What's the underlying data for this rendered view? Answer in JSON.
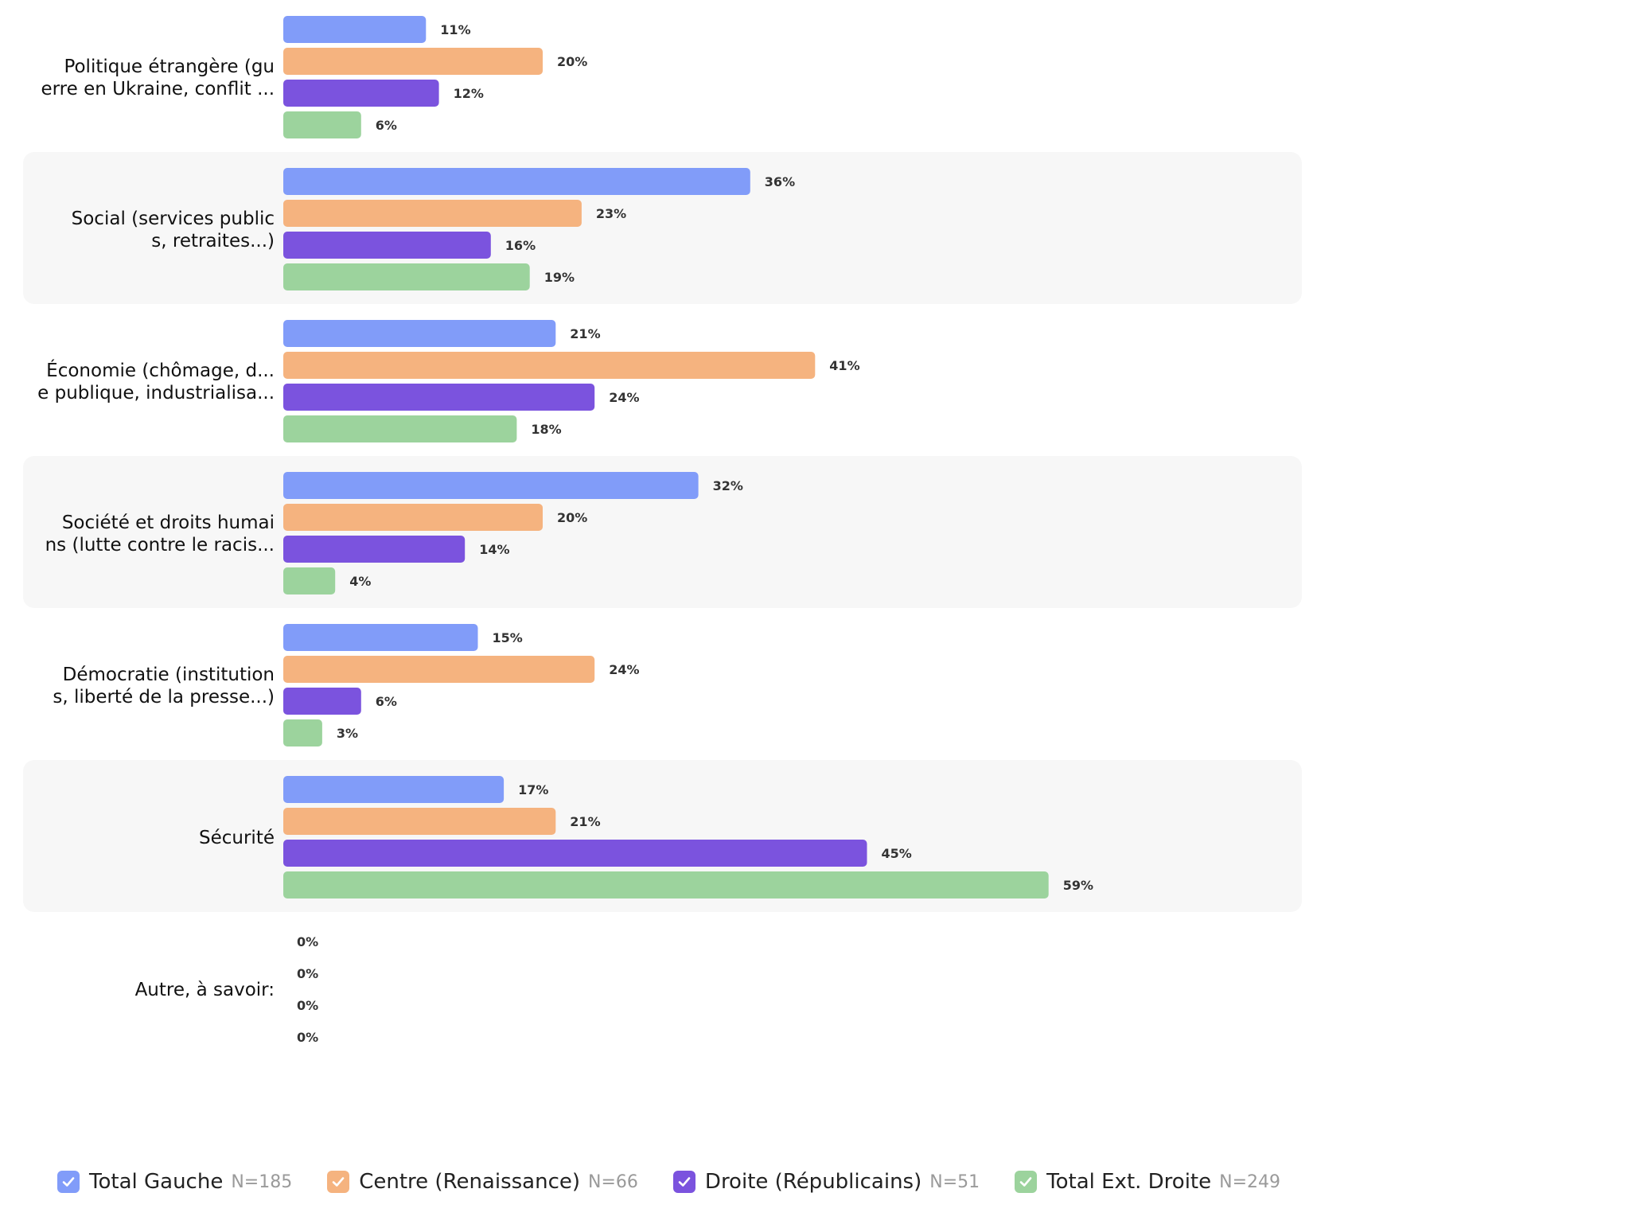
{
  "chart_data": {
    "type": "bar",
    "orientation": "horizontal",
    "title": "",
    "xlabel": "",
    "ylabel": "",
    "xlim": [
      0,
      100
    ],
    "grid": false,
    "legend_position": "bottom-left",
    "categories": [
      {
        "line1": "Politique étrangère (gu",
        "line2": "erre en Ukraine, conflit ..."
      },
      {
        "line1": "Social (services public",
        "line2": "s, retraites...)"
      },
      {
        "line1": "Économie (chômage, d...",
        "line2": "e publique, industrialisa..."
      },
      {
        "line1": "Société et droits humai",
        "line2": "ns (lutte contre le racis..."
      },
      {
        "line1": "Démocratie (institution",
        "line2": "s, liberté de la presse...)"
      },
      {
        "line1": "Sécurité",
        "line2": ""
      },
      {
        "line1": "Autre, à savoir:",
        "line2": ""
      }
    ],
    "series": [
      {
        "name": "Total Gauche",
        "n": "N=185",
        "color": "#819cf9",
        "values": [
          11,
          36,
          21,
          32,
          15,
          17,
          0
        ],
        "labels": [
          "11%",
          "36%",
          "21%",
          "32%",
          "15%",
          "17%",
          "0%"
        ]
      },
      {
        "name": "Centre (Renaissance)",
        "n": "N=66",
        "color": "#f5b37f",
        "values": [
          20,
          23,
          41,
          20,
          24,
          21,
          0
        ],
        "labels": [
          "20%",
          "23%",
          "41%",
          "20%",
          "24%",
          "21%",
          "0%"
        ]
      },
      {
        "name": "Droite (Républicains)",
        "n": "N=51",
        "color": "#7b53de",
        "values": [
          12,
          16,
          24,
          14,
          6,
          45,
          0
        ],
        "labels": [
          "12%",
          "16%",
          "24%",
          "14%",
          "6%",
          "45%",
          "0%"
        ]
      },
      {
        "name": "Total Ext. Droite",
        "n": "N=249",
        "color": "#9cd39d",
        "values": [
          6,
          19,
          18,
          4,
          3,
          59,
          0
        ],
        "labels": [
          "6%",
          "19%",
          "18%",
          "4%",
          "3%",
          "59%",
          "0%"
        ]
      }
    ]
  },
  "colors": {
    "band": "#f7f7f7",
    "text": "#111111",
    "muted": "#9a9a9a"
  }
}
